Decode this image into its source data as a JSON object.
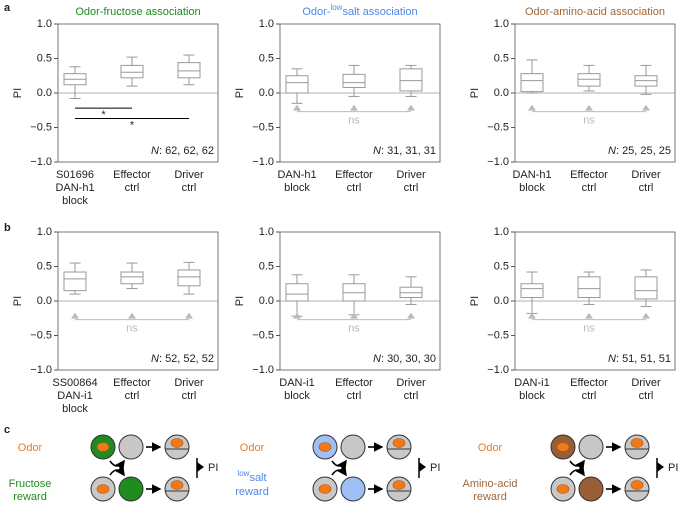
{
  "panel_labels": [
    "a",
    "b",
    "c"
  ],
  "chart_data": [
    {
      "type": "box",
      "title": "Odor-fructose association",
      "color": "#1e8c1e",
      "ylabel": "PI",
      "ylim": [
        -1,
        1
      ],
      "yticks": [
        {
          "value": 1,
          "label": "1.0"
        },
        {
          "value": 0.5,
          "label": "0.5"
        },
        {
          "value": 0,
          "label": "0.0"
        },
        {
          "value": -0.5,
          "label": "−0.5"
        },
        {
          "value": -1,
          "label": "−1.0"
        }
      ],
      "categories": [
        [
          "S01696",
          "DAN-h1",
          "block"
        ],
        [
          "Effector",
          "ctrl"
        ],
        [
          "Driver",
          "ctrl"
        ]
      ],
      "boxes": [
        {
          "min": -0.08,
          "q1": 0.12,
          "median": 0.2,
          "q3": 0.28,
          "max": 0.38
        },
        {
          "min": 0.1,
          "q1": 0.22,
          "median": 0.3,
          "q3": 0.4,
          "max": 0.52
        },
        {
          "min": 0.12,
          "q1": 0.22,
          "median": 0.32,
          "q3": 0.44,
          "max": 0.55
        }
      ],
      "sig_stars": [
        "*",
        "*"
      ],
      "n_symbol": "N",
      "n_text": ": 62, 62, 62"
    },
    {
      "type": "box",
      "title": [
        "Odor-",
        "low",
        "salt association"
      ],
      "color": "#4f86ec",
      "ylabel": "PI",
      "ylim": [
        -1,
        1
      ],
      "yticks": [
        {
          "value": 1,
          "label": "1.0"
        },
        {
          "value": 0.5,
          "label": "0.5"
        },
        {
          "value": 0,
          "label": "0.0"
        },
        {
          "value": -0.5,
          "label": "−0.5"
        },
        {
          "value": -1,
          "label": "−1.0"
        }
      ],
      "categories": [
        [
          "DAN-h1",
          "block"
        ],
        [
          "Effector",
          "ctrl"
        ],
        [
          "Driver",
          "ctrl"
        ]
      ],
      "boxes": [
        {
          "min": -0.15,
          "q1": 0,
          "median": 0.15,
          "q3": 0.25,
          "max": 0.35
        },
        {
          "min": -0.05,
          "q1": 0.08,
          "median": 0.15,
          "q3": 0.27,
          "max": 0.4
        },
        {
          "min": -0.05,
          "q1": 0.03,
          "median": 0.18,
          "q3": 0.35,
          "max": 0.4
        }
      ],
      "sig_ns": "ns",
      "n_symbol": "N",
      "n_text": ": 31, 31, 31"
    },
    {
      "type": "box",
      "title": "Odor-amino-acid association",
      "color": "#a0673a",
      "ylabel": "PI",
      "ylim": [
        -1,
        1
      ],
      "yticks": [
        {
          "value": 1,
          "label": "1.0"
        },
        {
          "value": 0.5,
          "label": "0.5"
        },
        {
          "value": 0,
          "label": "0.0"
        },
        {
          "value": -0.5,
          "label": "−0.5"
        },
        {
          "value": -1,
          "label": "−1.0"
        }
      ],
      "categories": [
        [
          "DAN-h1",
          "block"
        ],
        [
          "Effector",
          "ctrl"
        ],
        [
          "Driver",
          "ctrl"
        ]
      ],
      "boxes": [
        {
          "min": 0,
          "q1": 0.02,
          "median": 0.18,
          "q3": 0.28,
          "max": 0.48
        },
        {
          "min": 0.03,
          "q1": 0.1,
          "median": 0.2,
          "q3": 0.28,
          "max": 0.4
        },
        {
          "min": -0.02,
          "q1": 0.1,
          "median": 0.18,
          "q3": 0.25,
          "max": 0.4
        }
      ],
      "sig_ns": "ns",
      "n_symbol": "N",
      "n_text": ": 25, 25, 25"
    },
    {
      "type": "box",
      "ylabel": "PI",
      "ylim": [
        -1,
        1
      ],
      "yticks": [
        {
          "value": 1,
          "label": "1.0"
        },
        {
          "value": 0.5,
          "label": "0.5"
        },
        {
          "value": 0,
          "label": "0.0"
        },
        {
          "value": -0.5,
          "label": "−0.5"
        },
        {
          "value": -1,
          "label": "−1.0"
        }
      ],
      "categories": [
        [
          "SS00864",
          "DAN-i1",
          "block"
        ],
        [
          "Effector",
          "ctrl"
        ],
        [
          "Driver",
          "ctrl"
        ]
      ],
      "boxes": [
        {
          "min": 0.1,
          "q1": 0.15,
          "median": 0.32,
          "q3": 0.42,
          "max": 0.55
        },
        {
          "min": 0.18,
          "q1": 0.25,
          "median": 0.35,
          "q3": 0.42,
          "max": 0.55
        },
        {
          "min": 0.1,
          "q1": 0.22,
          "median": 0.35,
          "q3": 0.45,
          "max": 0.56
        }
      ],
      "sig_ns": "ns",
      "n_symbol": "N",
      "n_text": ": 52, 52, 52"
    },
    {
      "type": "box",
      "ylabel": "PI",
      "ylim": [
        -1,
        1
      ],
      "yticks": [
        {
          "value": 1,
          "label": "1.0"
        },
        {
          "value": 0.5,
          "label": "0.5"
        },
        {
          "value": 0,
          "label": "0.0"
        },
        {
          "value": -0.5,
          "label": "−0.5"
        },
        {
          "value": -1,
          "label": "−1.0"
        }
      ],
      "categories": [
        [
          "DAN-i1",
          "block"
        ],
        [
          "Effector",
          "ctrl"
        ],
        [
          "Driver",
          "ctrl"
        ]
      ],
      "boxes": [
        {
          "min": -0.22,
          "q1": 0,
          "median": 0.1,
          "q3": 0.25,
          "max": 0.38
        },
        {
          "min": -0.2,
          "q1": 0,
          "median": 0.12,
          "q3": 0.25,
          "max": 0.38
        },
        {
          "min": -0.05,
          "q1": 0.05,
          "median": 0.12,
          "q3": 0.2,
          "max": 0.35
        }
      ],
      "sig_ns": "ns",
      "n_symbol": "N",
      "n_text": ": 30, 30, 30"
    },
    {
      "type": "box",
      "ylabel": "PI",
      "ylim": [
        -1,
        1
      ],
      "yticks": [
        {
          "value": 1,
          "label": "1.0"
        },
        {
          "value": 0.5,
          "label": "0.5"
        },
        {
          "value": 0,
          "label": "0.0"
        },
        {
          "value": -0.5,
          "label": "−0.5"
        },
        {
          "value": -1,
          "label": "−1.0"
        }
      ],
      "categories": [
        [
          "DAN-i1",
          "block"
        ],
        [
          "Effector",
          "ctrl"
        ],
        [
          "Driver",
          "ctrl"
        ]
      ],
      "boxes": [
        {
          "min": -0.18,
          "q1": 0.05,
          "median": 0.18,
          "q3": 0.25,
          "max": 0.42
        },
        {
          "min": -0.05,
          "q1": 0.05,
          "median": 0.18,
          "q3": 0.35,
          "max": 0.42
        },
        {
          "min": -0.08,
          "q1": 0.03,
          "median": 0.15,
          "q3": 0.35,
          "max": 0.45
        }
      ],
      "sig_ns": "ns",
      "n_symbol": "N",
      "n_text": ": 51, 51, 51"
    }
  ],
  "diagram": [
    {
      "odor": "Odor",
      "reward_lines": [
        "Fructose",
        "reward"
      ],
      "color": "#1e8c1e",
      "pi": "PI"
    },
    {
      "odor": "Odor",
      "reward_sup": "low",
      "reward_lines": [
        "salt",
        "reward"
      ],
      "color": "#9fc0f5",
      "text_color": "#4f86ec",
      "pi": "PI"
    },
    {
      "odor": "Odor",
      "reward_lines": [
        "Amino-acid",
        "reward"
      ],
      "color": "#9a5e36",
      "text_color": "#a0673a",
      "pi": "PI"
    }
  ]
}
